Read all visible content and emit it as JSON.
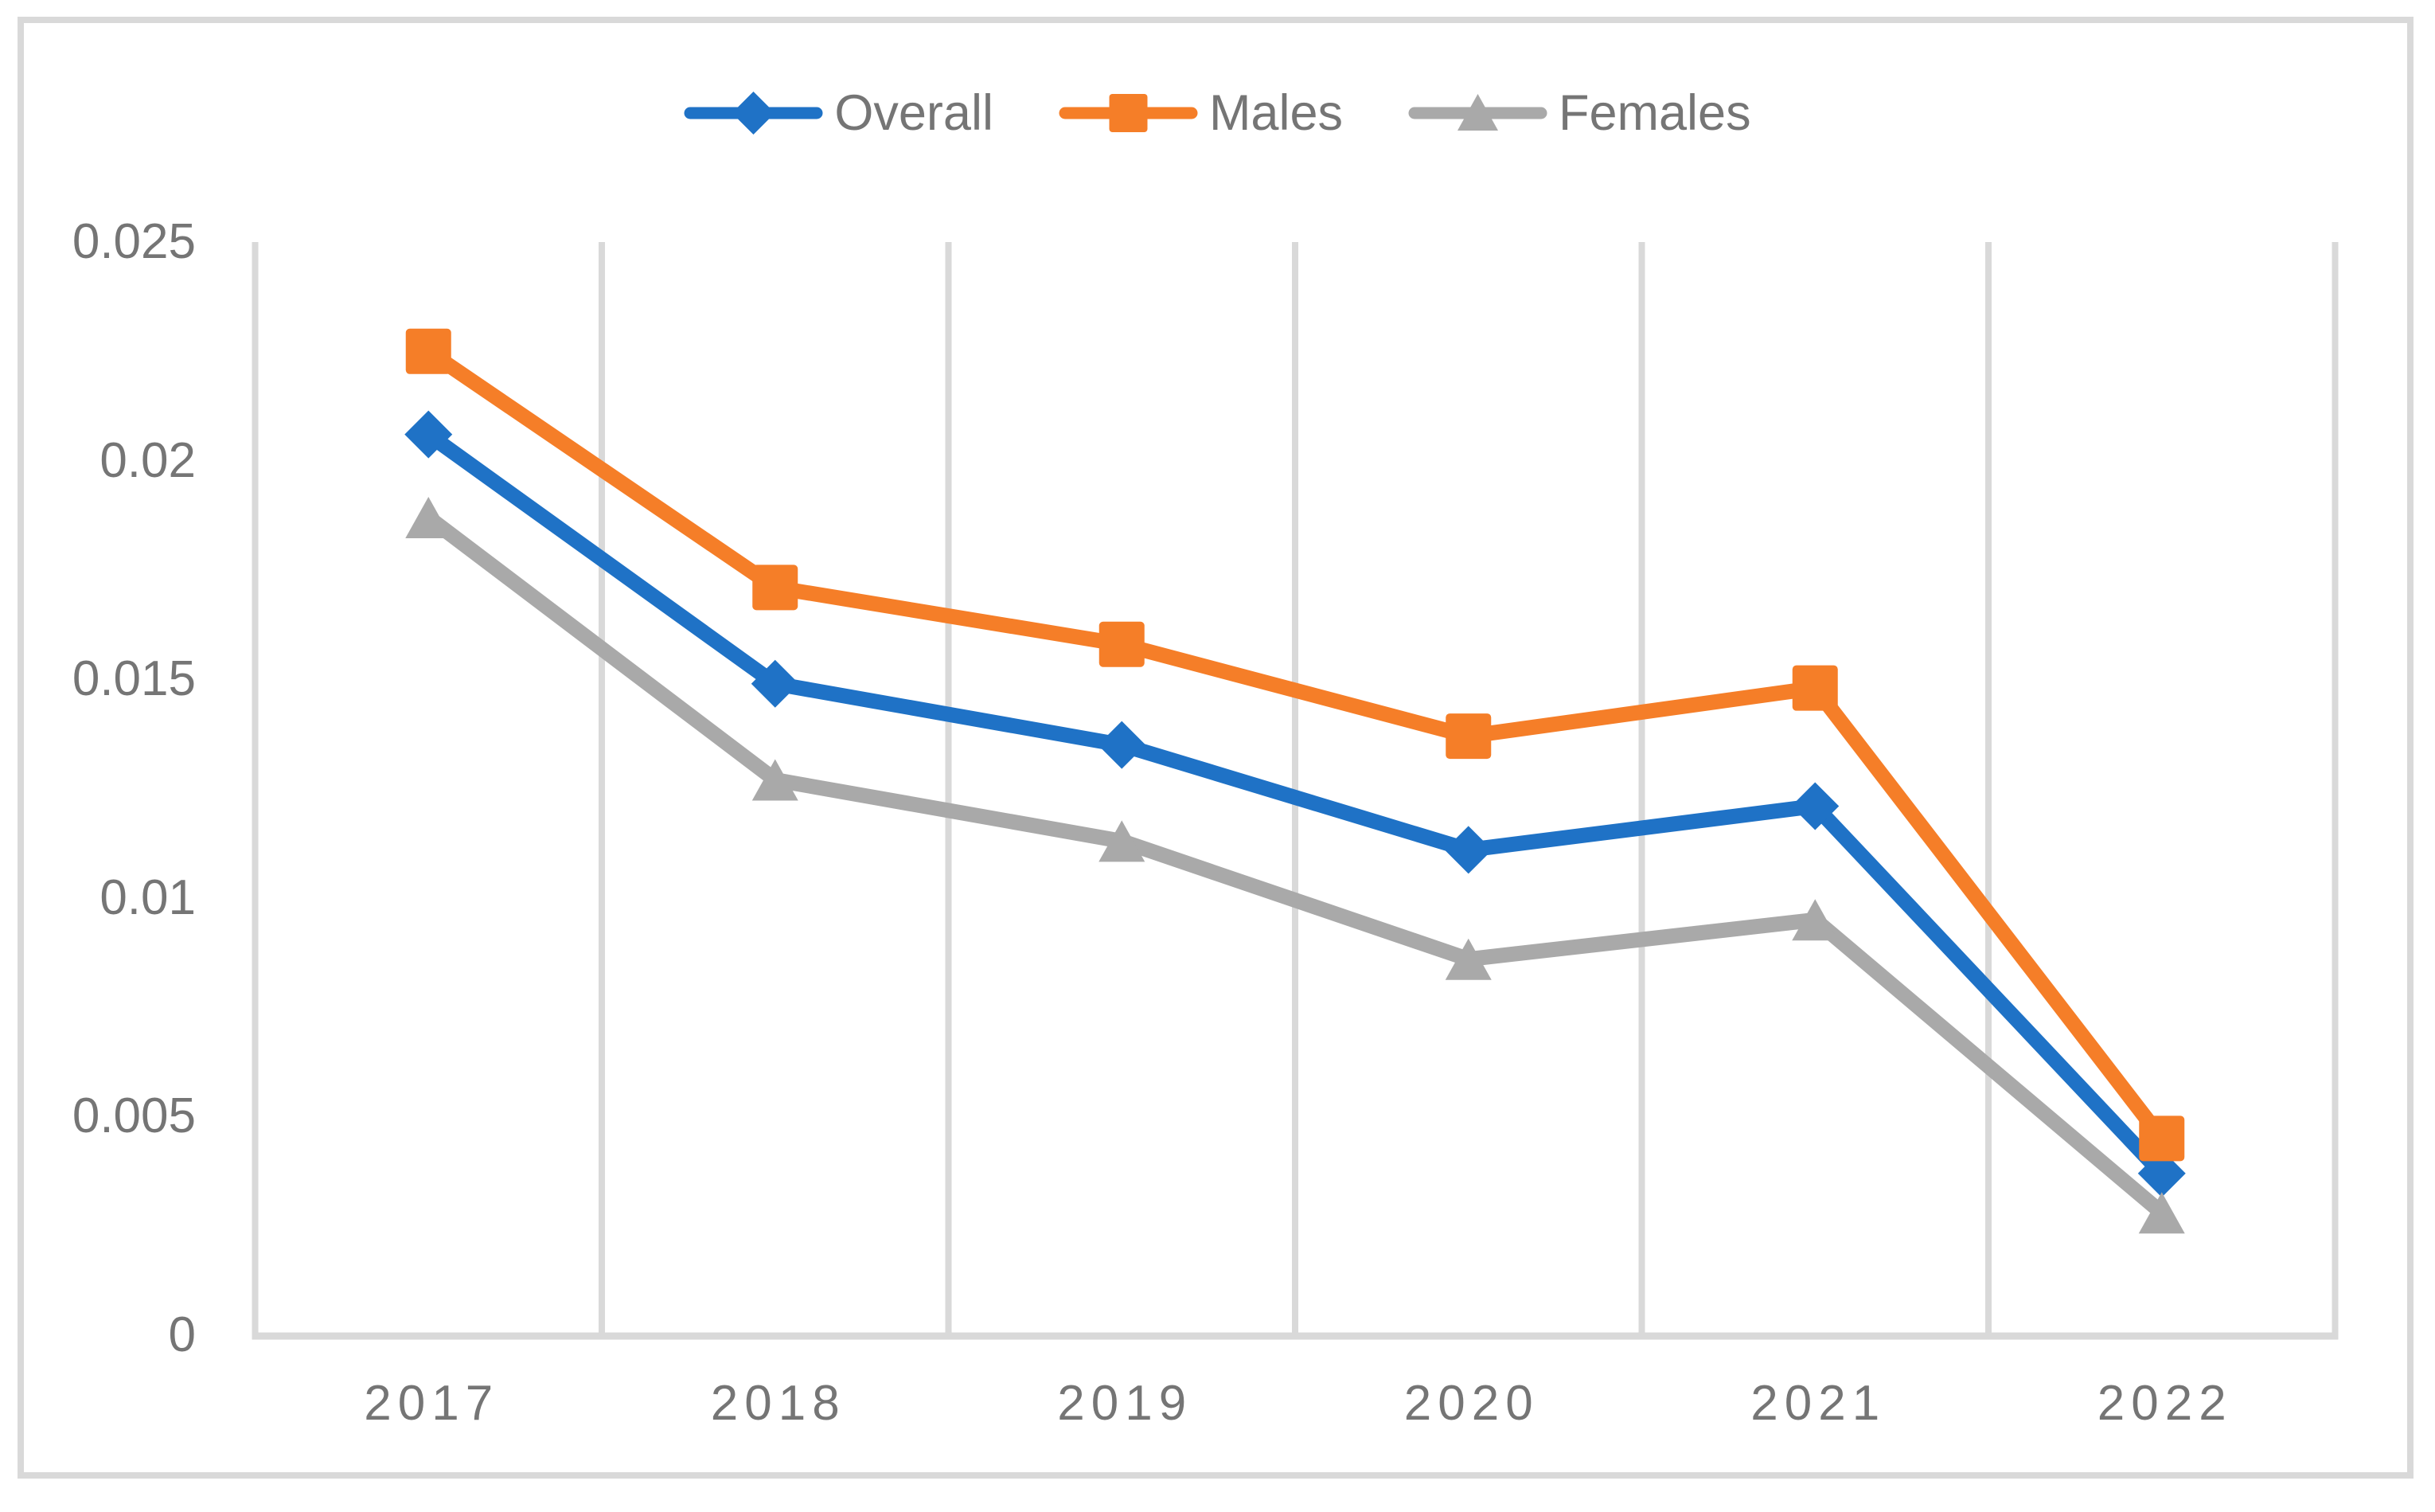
{
  "chart_data": {
    "type": "line",
    "title": "",
    "categories": [
      "2017",
      "2018",
      "2019",
      "2020",
      "2021",
      "2022"
    ],
    "series": [
      {
        "name": "Overall",
        "marker": "diamond",
        "color": "#1f72c6",
        "values": [
          0.0206,
          0.0149,
          0.0135,
          0.0111,
          0.0121,
          0.0037
        ]
      },
      {
        "name": "Males",
        "marker": "square",
        "color": "#f57e28",
        "values": [
          0.0225,
          0.0171,
          0.0158,
          0.0137,
          0.0148,
          0.0045
        ]
      },
      {
        "name": "Females",
        "marker": "triangle",
        "color": "#a9a9a9",
        "values": [
          0.0187,
          0.0127,
          0.0113,
          0.0086,
          0.0095,
          0.0028
        ]
      }
    ],
    "y_ticks": [
      {
        "value": 0,
        "label": "0"
      },
      {
        "value": 0.005,
        "label": "0.005"
      },
      {
        "value": 0.01,
        "label": "0.01"
      },
      {
        "value": 0.015,
        "label": "0.015"
      },
      {
        "value": 0.02,
        "label": "0.02"
      },
      {
        "value": 0.025,
        "label": "0.025"
      }
    ],
    "ylim": [
      0,
      0.025
    ],
    "xlabel": "",
    "ylabel": "",
    "grid": "vertical-only",
    "legend_position": "top-center",
    "colors": {
      "gridline": "#d9d9d9",
      "axis_line": "#d9d9d9",
      "frame_border": "#d9d9d9",
      "tick_text": "#757575",
      "background": "#ffffff"
    }
  }
}
